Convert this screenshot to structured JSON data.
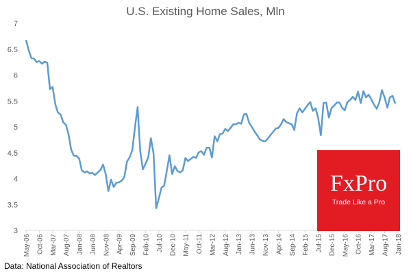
{
  "chart_data": {
    "type": "line",
    "title": "U.S. Existing Home Sales, Mln",
    "ylim": [
      3,
      7
    ],
    "yticks": [
      "3",
      "3.5",
      "4",
      "4.5",
      "5",
      "5.5",
      "6",
      "6.5",
      "7"
    ],
    "xticks": [
      "May-06",
      "Oct-06",
      "Mar-07",
      "Aug-07",
      "Jan-08",
      "Jun-08",
      "Nov-08",
      "Apr-09",
      "Sep-09",
      "Feb-10",
      "Jul-10",
      "Dec-10",
      "May-11",
      "Oct-11",
      "Mar-12",
      "Aug-12",
      "Jan-13",
      "Jun-13",
      "Nov-13",
      "Apr-14",
      "Sep-14",
      "Feb-15",
      "Jul-15",
      "Dec-15",
      "May-16",
      "Oct-16",
      "Mar-17",
      "Aug-17",
      "Jan-18"
    ],
    "grid": false,
    "legend": "none",
    "series": [
      {
        "color": "#5b9bd5",
        "values": [
          6.68,
          6.48,
          6.33,
          6.32,
          6.25,
          6.27,
          6.22,
          6.26,
          6.24,
          5.73,
          5.77,
          5.44,
          5.28,
          5.24,
          5.09,
          5.04,
          4.86,
          4.56,
          4.44,
          4.44,
          4.39,
          4.16,
          4.12,
          4.14,
          4.1,
          4.11,
          4.07,
          4.12,
          4.17,
          4.27,
          4.09,
          3.76,
          3.98,
          3.84,
          3.92,
          3.93,
          3.96,
          4.03,
          4.33,
          4.41,
          4.55,
          4.99,
          5.38,
          4.53,
          4.18,
          4.29,
          4.41,
          4.78,
          4.49,
          3.43,
          3.62,
          3.83,
          3.86,
          4.15,
          4.45,
          4.09,
          4.24,
          4.15,
          4.12,
          4.16,
          4.4,
          4.34,
          4.38,
          4.42,
          4.4,
          4.51,
          4.53,
          4.46,
          4.6,
          4.6,
          4.41,
          4.82,
          4.72,
          4.86,
          4.87,
          4.96,
          4.92,
          4.98,
          5.05,
          5.05,
          5.08,
          5.06,
          5.24,
          5.25,
          5.08,
          5.0,
          4.91,
          4.84,
          4.76,
          4.73,
          4.72,
          4.77,
          4.84,
          4.9,
          4.97,
          4.98,
          5.05,
          5.15,
          5.09,
          5.07,
          5.05,
          4.94,
          5.26,
          5.36,
          5.28,
          5.35,
          5.42,
          5.48,
          5.31,
          5.36,
          5.17,
          4.84,
          5.46,
          5.47,
          5.18,
          5.36,
          5.41,
          5.47,
          5.47,
          5.37,
          5.32,
          5.48,
          5.52,
          5.58,
          5.52,
          5.68,
          5.46,
          5.69,
          5.57,
          5.62,
          5.53,
          5.43,
          5.35,
          5.47,
          5.71,
          5.57,
          5.37,
          5.57,
          5.6,
          5.45
        ]
      }
    ]
  },
  "source": "Data: National Association of Realtors",
  "logo": {
    "brand": "FxPro",
    "tagline": "Trade Like a Pro",
    "color": "#e31b23"
  }
}
